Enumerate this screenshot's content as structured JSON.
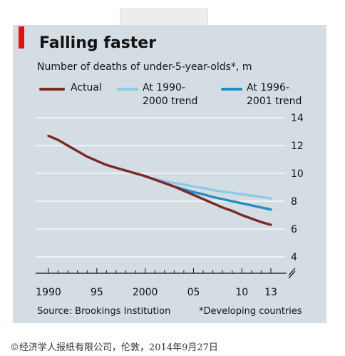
{
  "colors": {
    "background": "#d4dde4",
    "accent": "#e3120b",
    "actual": "#7a2a22",
    "trend_1990_2000": "#8fc9e8",
    "trend_1996_2001": "#1f8fc3",
    "gridline": "#ffffff"
  },
  "chart_data": {
    "type": "line",
    "title": "Falling faster",
    "subtitle": "Number of deaths of under-5-year-olds*, m",
    "xlim": [
      1990,
      2013
    ],
    "ylim": [
      3,
      14
    ],
    "y_ticks": [
      4,
      6,
      8,
      10,
      12,
      14
    ],
    "x_tick_labels": [
      {
        "x": 1990,
        "label": "1990"
      },
      {
        "x": 1995,
        "label": "95"
      },
      {
        "x": 2000,
        "label": "2000"
      },
      {
        "x": 2005,
        "label": "05"
      },
      {
        "x": 2010,
        "label": "10"
      },
      {
        "x": 2013,
        "label": "13"
      }
    ],
    "axis_break": true,
    "grid": "horizontal",
    "legend_position": "top",
    "series": [
      {
        "name": "Actual",
        "x": [
          1990,
          1991,
          1992,
          1993,
          1994,
          1995,
          1996,
          1997,
          1998,
          1999,
          2000,
          2001,
          2002,
          2003,
          2004,
          2005,
          2006,
          2007,
          2008,
          2009,
          2010,
          2011,
          2012,
          2013
        ],
        "y": [
          12.7,
          12.4,
          12.0,
          11.6,
          11.2,
          10.9,
          10.6,
          10.4,
          10.2,
          10.0,
          9.8,
          9.55,
          9.3,
          9.05,
          8.75,
          8.45,
          8.15,
          7.85,
          7.55,
          7.3,
          7.0,
          6.75,
          6.5,
          6.3
        ]
      },
      {
        "name": "At 1990-2000 trend",
        "x": [
          2000,
          2001,
          2002,
          2003,
          2004,
          2005,
          2006,
          2007,
          2008,
          2009,
          2010,
          2011,
          2012,
          2013
        ],
        "y": [
          9.75,
          9.6,
          9.45,
          9.3,
          9.2,
          9.05,
          8.95,
          8.8,
          8.7,
          8.6,
          8.5,
          8.4,
          8.3,
          8.2
        ]
      },
      {
        "name": "At 1996-2001 trend",
        "x": [
          2002,
          2003,
          2004,
          2005,
          2006,
          2007,
          2008,
          2009,
          2010,
          2011,
          2012,
          2013
        ],
        "y": [
          9.3,
          9.05,
          8.85,
          8.65,
          8.5,
          8.3,
          8.15,
          8.0,
          7.85,
          7.7,
          7.55,
          7.4
        ]
      }
    ]
  },
  "legend": {
    "actual": "Actual",
    "trend_a": "At 1990-\n2000 trend",
    "trend_b": "At 1996-\n2001 trend"
  },
  "footer": {
    "source": "Source: Brookings Institution",
    "note": "*Developing countries"
  },
  "copyright": "©经济学人报纸有限公司，伦敦，2014年9月27日"
}
